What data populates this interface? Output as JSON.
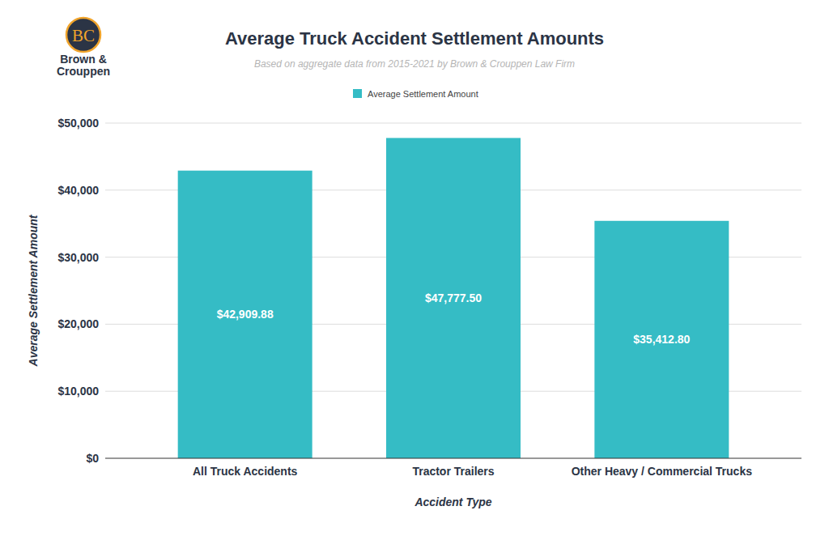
{
  "chart_data": {
    "type": "bar",
    "title": "Average Truck Accident Settlement Amounts",
    "subtitle": "Based on aggregate data from 2015-2021 by Brown & Crouppen Law Firm",
    "annotations": [
      "BC",
      "Brown &",
      "Crouppen"
    ],
    "x_label": "Accident Type",
    "y_label": "Average Settlement Amount",
    "categories": [
      "All Truck Accidents",
      "Tractor Trailers",
      "Other Heavy / Commercial Trucks"
    ],
    "series": [
      {
        "name": "Average Settlement Amount",
        "color": "#35bcc5",
        "values": [
          42909.88,
          47777.5,
          35412.8
        ],
        "value_labels": [
          "$42,909.88",
          "$47,777.50",
          "$35,412.80"
        ]
      }
    ],
    "ylim": [
      0,
      50000
    ],
    "yticks": [
      {
        "value": 0,
        "label": "$0"
      },
      {
        "value": 10000,
        "label": "$10,000"
      },
      {
        "value": 20000,
        "label": "$20,000"
      },
      {
        "value": 30000,
        "label": "$30,000"
      },
      {
        "value": 40000,
        "label": "$40,000"
      },
      {
        "value": 50000,
        "label": "$50,000"
      }
    ],
    "grid": true,
    "legend": "top",
    "data_labels": true
  }
}
